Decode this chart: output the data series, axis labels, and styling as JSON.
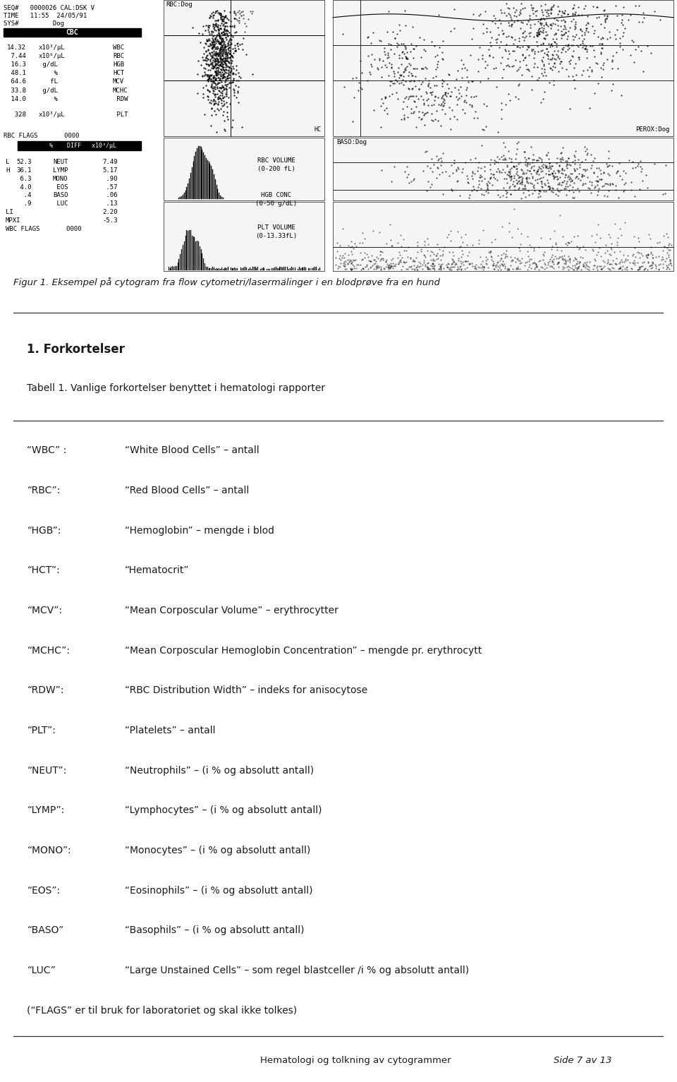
{
  "fig_caption": "Figur 1. Eksempel på cytogram fra flow cytometri/lasermȧlinger i en blodprøve fra en hund",
  "section_title": "1. Forkortelser",
  "table_title": "Tabell 1. Vanlige forkortelser benyttet i hematologi rapporter",
  "abbreviations": [
    [
      "“WBC” :",
      "“White Blood Cells” – antall"
    ],
    [
      "“RBC”:",
      "“Red Blood Cells” – antall"
    ],
    [
      "“HGB”:",
      "“Hemoglobin” – mengde i blod"
    ],
    [
      "“HCT”:",
      "“Hematocrit”"
    ],
    [
      "“MCV”:",
      "“Mean Corposcular Volume” – erythrocytter"
    ],
    [
      "“MCHC”:",
      "“Mean Corposcular Hemoglobin Concentration” – mengde pr. erythrocytt"
    ],
    [
      "“RDW”:",
      "“RBC Distribution Width” – indeks for anisocytose"
    ],
    [
      "“PLT”:",
      "“Platelets” – antall"
    ],
    [
      "“NEUT”:",
      "“Neutrophils” – (i % og absolutt antall)"
    ],
    [
      "“LYMP”:",
      "“Lymphocytes” – (i % og absolutt antall)"
    ],
    [
      "“MONO”:",
      "“Monocytes” – (i % og absolutt antall)"
    ],
    [
      "“EOS”:",
      "“Eosinophils” – (i % og absolutt antall)"
    ],
    [
      "“BASO”",
      "“Basophils” – (i % og absolutt antall)"
    ],
    [
      "“LUC”",
      "“Large Unstained Cells” – som regel blastceller /i % og absolutt antall)"
    ],
    [
      "(“FLAGS” er til bruk for laboratoriet og skal ikke tolkes)",
      ""
    ]
  ],
  "footer_left": "Hematologi og tolkning av cytogrammer",
  "footer_right": "Side 7 av 13",
  "bg_color": "#ffffff",
  "text_color": "#1a1a1a",
  "image_bg": "#e8e8e8"
}
